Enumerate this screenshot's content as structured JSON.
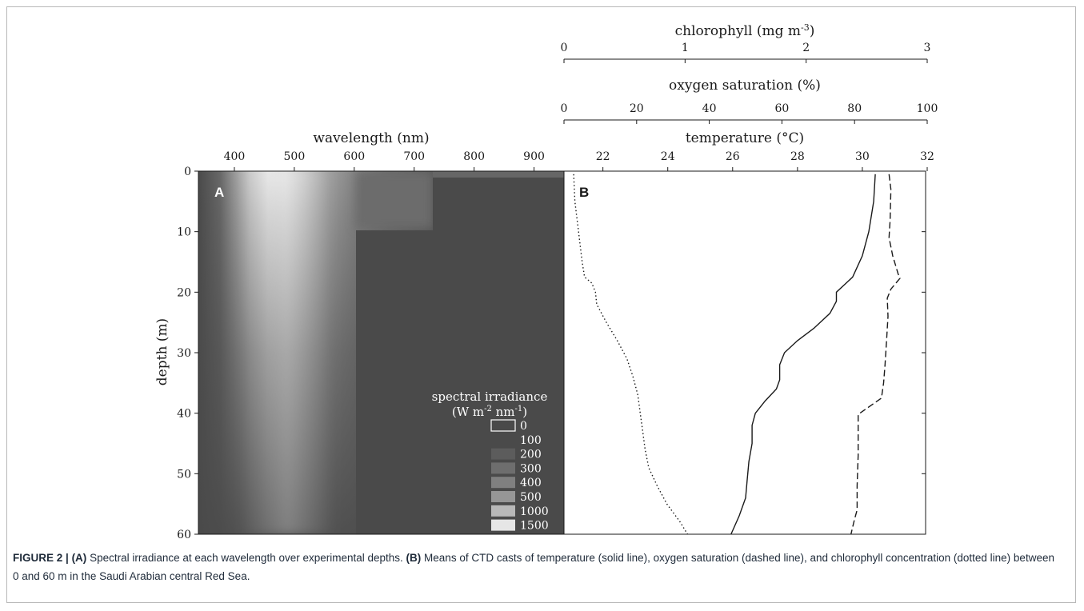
{
  "figure": {
    "caption": {
      "label": "FIGURE 2 |",
      "part_a": "(A)",
      "text_a": " Spectral irradiance at each wavelength over experimental depths. ",
      "part_b": "(B)",
      "text_b": " Means of CTD casts of temperature (solid line), oxygen saturation (dashed line), and chlorophyll concentration (dotted line) between 0 and 60 m in the Saudi Arabian central Red Sea."
    }
  },
  "chart_data": [
    {
      "type": "heatmap",
      "panel_label": "A",
      "xlabel": "wavelength (nm)",
      "ylabel": "depth (m)",
      "xlim": [
        340,
        950
      ],
      "ylim": [
        0,
        60
      ],
      "y_inverted": true,
      "x_ticks": [
        400,
        500,
        600,
        700,
        800,
        900
      ],
      "y_ticks": [
        0,
        10,
        20,
        30,
        40,
        50,
        60
      ],
      "colorbar": {
        "title_line1": "spectral irradiance",
        "title_line2_main": "(W m",
        "title_line2_sup1": "-2",
        "title_line2_mid": " nm",
        "title_line2_sup2": "-1",
        "title_line2_end": ")",
        "levels": [
          {
            "label": "0",
            "color": "#ffffff"
          },
          {
            "label": "100",
            "color": "#4a4a4a"
          },
          {
            "label": "200",
            "color": "#5c5c5c"
          },
          {
            "label": "300",
            "color": "#6e6e6e"
          },
          {
            "label": "400",
            "color": "#808080"
          },
          {
            "label": "500",
            "color": "#969696"
          },
          {
            "label": "1000",
            "color": "#b8b8b8"
          },
          {
            "label": "1500",
            "color": "#e6e6e6"
          }
        ]
      }
    },
    {
      "type": "line",
      "panel_label": "B",
      "y_inverted": true,
      "ylim": [
        0,
        60
      ],
      "axes": [
        {
          "label": "temperature (°C)",
          "ticks": [
            22,
            24,
            26,
            28,
            30,
            32
          ],
          "xlim": [
            20.8,
            32
          ]
        },
        {
          "label": "oxygen saturation (%)",
          "ticks": [
            0,
            20,
            40,
            60,
            80,
            100
          ],
          "xlim": [
            0,
            100
          ]
        },
        {
          "label_main": "chlorophyll (mg m",
          "label_sup": "-3",
          "label_end": ")",
          "ticks": [
            0,
            1,
            2,
            3
          ],
          "xlim": [
            0,
            3
          ]
        }
      ],
      "series": [
        {
          "style": "solid",
          "axis": 0,
          "points": [
            [
              30.4,
              0.5
            ],
            [
              30.35,
              5
            ],
            [
              30.2,
              10
            ],
            [
              30.0,
              14
            ],
            [
              29.7,
              17.5
            ],
            [
              29.5,
              18.5
            ],
            [
              29.2,
              20
            ],
            [
              29.2,
              21.5
            ],
            [
              29.0,
              23.5
            ],
            [
              28.5,
              26
            ],
            [
              28.0,
              28
            ],
            [
              27.6,
              30
            ],
            [
              27.45,
              32
            ],
            [
              27.45,
              34.5
            ],
            [
              27.35,
              36
            ],
            [
              27.0,
              38
            ],
            [
              26.7,
              40
            ],
            [
              26.6,
              42
            ],
            [
              26.6,
              45
            ],
            [
              26.5,
              48
            ],
            [
              26.45,
              51
            ],
            [
              26.4,
              54
            ],
            [
              26.2,
              57
            ],
            [
              25.95,
              60
            ]
          ]
        },
        {
          "style": "dashed",
          "axis": 1,
          "points": [
            [
              89.5,
              0.5
            ],
            [
              90.0,
              3
            ],
            [
              89.8,
              8
            ],
            [
              89.5,
              11
            ],
            [
              90.5,
              14
            ],
            [
              92.0,
              17
            ],
            [
              92.5,
              17.7
            ],
            [
              90.0,
              19.5
            ],
            [
              89.0,
              21
            ],
            [
              89.2,
              24
            ],
            [
              88.8,
              28
            ],
            [
              88.4,
              32
            ],
            [
              88.0,
              35
            ],
            [
              87.4,
              37.5
            ],
            [
              81.0,
              40.2
            ],
            [
              81.0,
              43
            ],
            [
              81.0,
              47
            ],
            [
              80.7,
              52
            ],
            [
              80.7,
              56
            ],
            [
              80.0,
              57.5
            ],
            [
              79.0,
              60
            ]
          ]
        },
        {
          "style": "dotted",
          "axis": 2,
          "points": [
            [
              0.08,
              0.5
            ],
            [
              0.09,
              5
            ],
            [
              0.12,
              10
            ],
            [
              0.15,
              15
            ],
            [
              0.17,
              17.5
            ],
            [
              0.23,
              18.5
            ],
            [
              0.26,
              20
            ],
            [
              0.27,
              22
            ],
            [
              0.35,
              25
            ],
            [
              0.44,
              28
            ],
            [
              0.52,
              31
            ],
            [
              0.57,
              34
            ],
            [
              0.61,
              37
            ],
            [
              0.63,
              40
            ],
            [
              0.65,
              43
            ],
            [
              0.67,
              46
            ],
            [
              0.7,
              49
            ],
            [
              0.77,
              52
            ],
            [
              0.85,
              55
            ],
            [
              0.96,
              58
            ],
            [
              1.02,
              60
            ]
          ]
        }
      ]
    }
  ]
}
